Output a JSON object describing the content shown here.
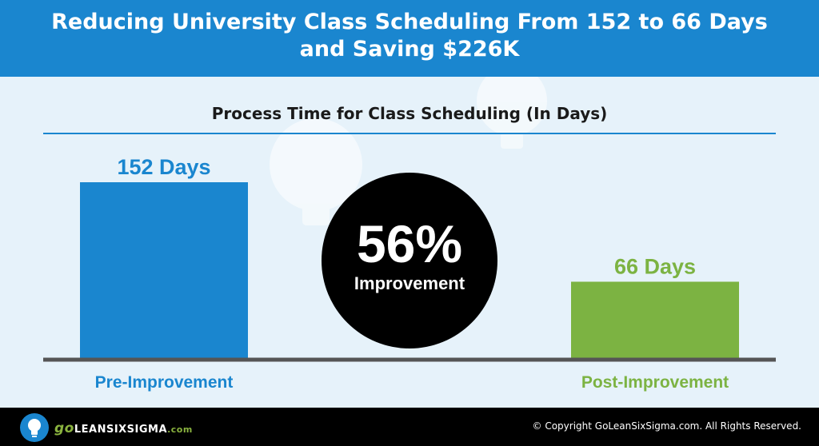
{
  "header": {
    "title_line1": "Reducing University Class Scheduling From 152 to 66 Days",
    "title_line2": "and Saving $226K"
  },
  "chart_data": {
    "type": "bar",
    "title": "Process Time for Class Scheduling (In Days)",
    "categories": [
      "Pre-Improvement",
      "Post-Improvement"
    ],
    "values": [
      152,
      66
    ],
    "value_labels": [
      "152 Days",
      "66 Days"
    ],
    "colors": [
      "#1a86cf",
      "#7cb342"
    ],
    "ylim": [
      0,
      152
    ],
    "grid": false
  },
  "callout": {
    "percent": "56%",
    "label": "Improvement"
  },
  "footer": {
    "logo_go": "go",
    "logo_main": "LEANSIXSIGMA",
    "logo_com": ".com",
    "copyright": "© Copyright GoLeanSixSigma.com. All Rights Reserved."
  },
  "colors": {
    "brand_blue": "#1a86cf",
    "brand_green": "#7cb342",
    "footer_bg": "#000000",
    "axis": "#555555"
  },
  "icons": [
    "lightbulb-icon"
  ]
}
